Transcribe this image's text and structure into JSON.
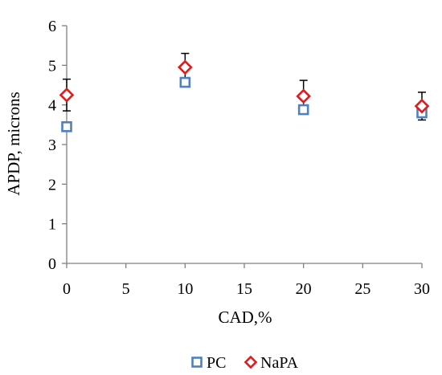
{
  "colors": {
    "pc": "#4F81BD",
    "napa": "#E31A1C",
    "axis": "#808080",
    "error_bar": "#000000"
  },
  "chart_data": {
    "type": "scatter",
    "title": "",
    "xlabel": "CAD,%",
    "ylabel": "APDP, microns",
    "xlim": [
      0,
      30
    ],
    "ylim": [
      0,
      6
    ],
    "x_ticks": [
      "0",
      "5",
      "10",
      "15",
      "20",
      "25",
      "30"
    ],
    "y_ticks": [
      "0",
      "1",
      "2",
      "3",
      "4",
      "5",
      "6"
    ],
    "grid": false,
    "legend_position": "bottom",
    "series": [
      {
        "name": "PC",
        "marker": "square",
        "x": [
          0,
          10,
          20,
          30
        ],
        "y": [
          3.45,
          4.57,
          3.88,
          3.8
        ]
      },
      {
        "name": "NaPA",
        "marker": "diamond",
        "x": [
          0,
          10,
          20,
          30
        ],
        "y": [
          4.25,
          4.95,
          4.22,
          3.97
        ],
        "error": [
          0.4,
          0.35,
          0.4,
          0.35
        ]
      }
    ]
  }
}
